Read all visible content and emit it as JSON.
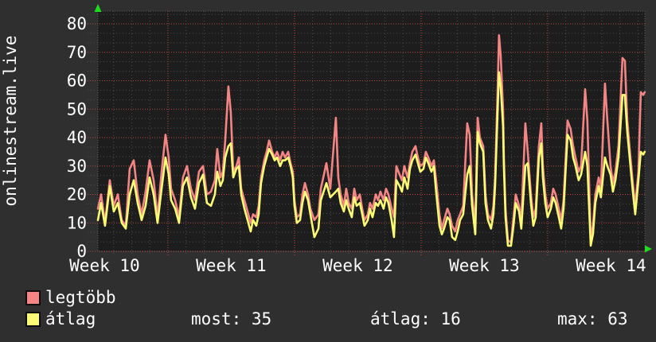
{
  "graph": {
    "vertical_title": "onlinestream.live"
  },
  "legend": {
    "items": [
      {
        "label": "legtöbb",
        "color": "#f48585"
      },
      {
        "label": "átlag",
        "color": "#fbfb75"
      }
    ]
  },
  "stats": [
    {
      "name": "most",
      "text": "most: 35"
    },
    {
      "name": "atlag",
      "text": "átlag: 16"
    },
    {
      "name": "max",
      "text": "max: 63"
    }
  ],
  "chart_data": {
    "type": "line",
    "title": "onlinestream.live",
    "legend_position": "bottom-left",
    "grid": {
      "major_color": "#b24c41",
      "minor_color": "#4e4e4e",
      "style": "dotted"
    },
    "x_axis": {
      "unit": "week-of-year",
      "min": 10.447,
      "max": 14.768,
      "major_gridline_weeks": [
        11,
        12,
        13,
        14
      ],
      "tick_labels": [
        "Week 10",
        "Week 11",
        "Week 12",
        "Week 13",
        "Week 14"
      ],
      "tick_label_centers_week": [
        10.5,
        11.5,
        12.5,
        13.5,
        14.5
      ]
    },
    "y_axis": {
      "min": 0,
      "max_visible": 84.5,
      "tick_step": 10,
      "tick_labels": [
        "0",
        "10",
        "20",
        "30",
        "40",
        "50",
        "60",
        "70",
        "80"
      ]
    },
    "summary": {
      "most": 35,
      "atlag": 16,
      "max": 63
    },
    "x_weeks": [
      10.447,
      10.472,
      10.503,
      10.541,
      10.572,
      10.604,
      10.635,
      10.667,
      10.698,
      10.73,
      10.761,
      10.792,
      10.824,
      10.855,
      10.887,
      10.918,
      10.95,
      10.981,
      11.006,
      11.025,
      11.057,
      11.088,
      11.119,
      11.151,
      11.182,
      11.214,
      11.245,
      11.277,
      11.308,
      11.34,
      11.371,
      11.39,
      11.415,
      11.434,
      11.453,
      11.478,
      11.497,
      11.516,
      11.541,
      11.56,
      11.579,
      11.604,
      11.623,
      11.654,
      11.673,
      11.698,
      11.717,
      11.736,
      11.761,
      11.78,
      11.799,
      11.824,
      11.843,
      11.862,
      11.887,
      11.906,
      11.925,
      11.95,
      11.969,
      11.987,
      12.0,
      12.019,
      12.044,
      12.063,
      12.082,
      12.107,
      12.126,
      12.157,
      12.189,
      12.208,
      12.252,
      12.283,
      12.327,
      12.346,
      12.365,
      12.39,
      12.409,
      12.428,
      12.453,
      12.472,
      12.491,
      12.516,
      12.535,
      12.553,
      12.579,
      12.597,
      12.616,
      12.642,
      12.66,
      12.679,
      12.704,
      12.723,
      12.742,
      12.767,
      12.786,
      12.805,
      12.83,
      12.849,
      12.868,
      12.893,
      12.912,
      12.931,
      12.956,
      12.975,
      12.994,
      13.019,
      13.038,
      13.057,
      13.082,
      13.101,
      13.119,
      13.145,
      13.164,
      13.182,
      13.208,
      13.226,
      13.245,
      13.27,
      13.289,
      13.308,
      13.333,
      13.365,
      13.384,
      13.403,
      13.428,
      13.447,
      13.465,
      13.491,
      13.509,
      13.528,
      13.553,
      13.572,
      13.585,
      13.604,
      13.616,
      13.629,
      13.648,
      13.654,
      13.667,
      13.686,
      13.711,
      13.73,
      13.748,
      13.774,
      13.792,
      13.824,
      13.843,
      13.868,
      13.887,
      13.906,
      13.931,
      13.95,
      13.962,
      13.981,
      14.0,
      14.025,
      14.044,
      14.063,
      14.088,
      14.107,
      14.126,
      14.157,
      14.182,
      14.201,
      14.22,
      14.245,
      14.264,
      14.296,
      14.314,
      14.34,
      14.358,
      14.377,
      14.403,
      14.421,
      14.453,
      14.472,
      14.497,
      14.516,
      14.535,
      14.56,
      14.591,
      14.61,
      14.629,
      14.654,
      14.673,
      14.692,
      14.717,
      14.736,
      14.755,
      14.767
    ],
    "series": [
      {
        "name": "legtöbb",
        "color": "#f48585",
        "values": [
          15,
          20,
          10,
          25,
          16,
          20,
          11,
          9,
          29,
          32,
          20,
          13,
          21,
          32,
          25,
          12,
          28,
          41,
          33,
          22,
          18,
          12,
          26,
          30,
          22,
          18,
          28,
          30,
          20,
          21,
          25,
          36,
          26,
          28,
          39,
          58,
          49,
          28,
          30,
          33,
          22,
          18,
          15,
          10,
          13,
          12,
          16,
          26,
          32,
          35,
          39,
          35,
          33,
          35,
          32,
          35,
          33,
          35,
          31,
          28,
          18,
          12,
          13,
          20,
          24,
          20,
          15,
          11,
          13,
          22,
          31,
          22,
          47,
          26,
          20,
          16,
          22,
          17,
          15,
          22,
          18,
          20,
          15,
          11,
          13,
          17,
          15,
          20,
          18,
          21,
          18,
          22,
          20,
          15,
          12,
          30,
          27,
          25,
          30,
          26,
          31,
          35,
          37,
          33,
          30,
          31,
          35,
          33,
          30,
          32,
          25,
          13,
          8,
          11,
          15,
          13,
          9,
          7,
          11,
          13,
          16,
          45,
          41,
          20,
          9,
          47,
          40,
          37,
          20,
          13,
          11,
          16,
          26,
          55,
          76,
          69,
          50,
          33,
          15,
          4,
          3,
          12,
          20,
          16,
          11,
          45,
          35,
          20,
          12,
          15,
          37,
          45,
          30,
          20,
          15,
          17,
          22,
          20,
          15,
          11,
          18,
          46,
          43,
          37,
          33,
          28,
          30,
          57,
          46,
          4,
          9,
          20,
          26,
          22,
          59,
          46,
          30,
          24,
          28,
          37,
          68,
          67,
          46,
          33,
          24,
          16,
          28,
          56,
          55,
          56
        ]
      },
      {
        "name": "átlag",
        "color": "#fbfb75",
        "values": [
          11,
          17,
          9,
          23,
          14,
          17,
          10,
          8,
          20,
          25,
          17,
          11,
          16,
          26,
          20,
          10,
          22,
          33,
          27,
          18,
          15,
          10,
          23,
          26,
          19,
          15,
          24,
          27,
          17,
          16,
          20,
          28,
          23,
          25,
          33,
          37,
          38,
          26,
          29,
          30,
          20,
          15,
          12,
          7,
          11,
          9,
          13,
          24,
          30,
          33,
          36,
          34,
          32,
          33,
          30,
          32,
          32,
          33,
          30,
          26,
          16,
          10,
          11,
          17,
          21,
          18,
          13,
          5,
          8,
          18,
          24,
          19,
          21,
          22,
          17,
          14,
          18,
          15,
          12,
          19,
          16,
          17,
          13,
          9,
          11,
          15,
          12,
          17,
          16,
          18,
          15,
          19,
          17,
          11,
          5,
          25,
          23,
          21,
          26,
          22,
          29,
          32,
          34,
          31,
          28,
          29,
          33,
          31,
          28,
          30,
          21,
          9,
          6,
          8,
          12,
          11,
          5,
          4,
          7,
          11,
          13,
          27,
          30,
          16,
          6,
          42,
          38,
          35,
          17,
          11,
          8,
          13,
          23,
          48,
          63,
          58,
          44,
          30,
          12,
          2,
          2,
          9,
          17,
          14,
          8,
          30,
          31,
          17,
          9,
          12,
          33,
          38,
          26,
          17,
          12,
          15,
          19,
          17,
          12,
          8,
          15,
          41,
          39,
          33,
          30,
          25,
          27,
          35,
          30,
          2,
          6,
          17,
          23,
          19,
          33,
          30,
          27,
          21,
          25,
          33,
          55,
          55,
          42,
          30,
          21,
          13,
          25,
          35,
          34,
          35
        ]
      }
    ]
  }
}
